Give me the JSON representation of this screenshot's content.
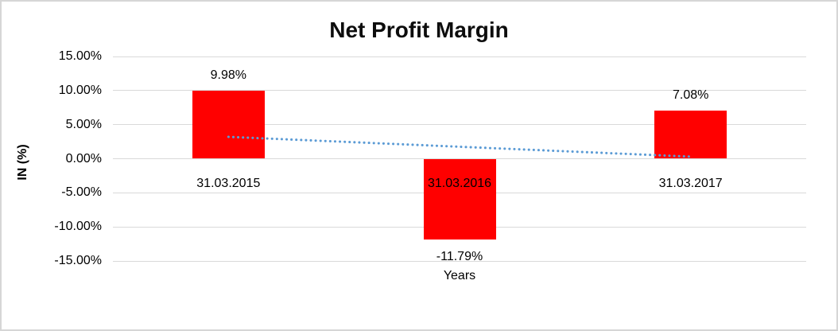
{
  "chart_data": {
    "type": "bar",
    "title": "Net Profit Margin",
    "ylabel": "IN (%)",
    "xlabel": "Years",
    "categories": [
      "31.03.2015",
      "31.03.2016",
      "31.03.2017"
    ],
    "values": [
      9.98,
      -11.79,
      7.08
    ],
    "data_labels": [
      "9.98%",
      "-11.79%",
      "7.08%"
    ],
    "ylim": [
      -15,
      15
    ],
    "ytick_step": 5,
    "ytick_labels": [
      "15.00%",
      "10.00%",
      "5.00%",
      "0.00%",
      "-5.00%",
      "-10.00%",
      "-15.00%"
    ],
    "grid": true,
    "legend": false,
    "bar_color": "#FF0000",
    "gridline_color": "#D9D9D9",
    "background_color": "#FFFFFF",
    "border_color": "#D6D6D6",
    "text_color": "#000000",
    "trendline": {
      "type": "linear",
      "style": "dotted",
      "color": "#5B9BD5",
      "start_value": 3.21,
      "end_value": 0.31
    }
  }
}
